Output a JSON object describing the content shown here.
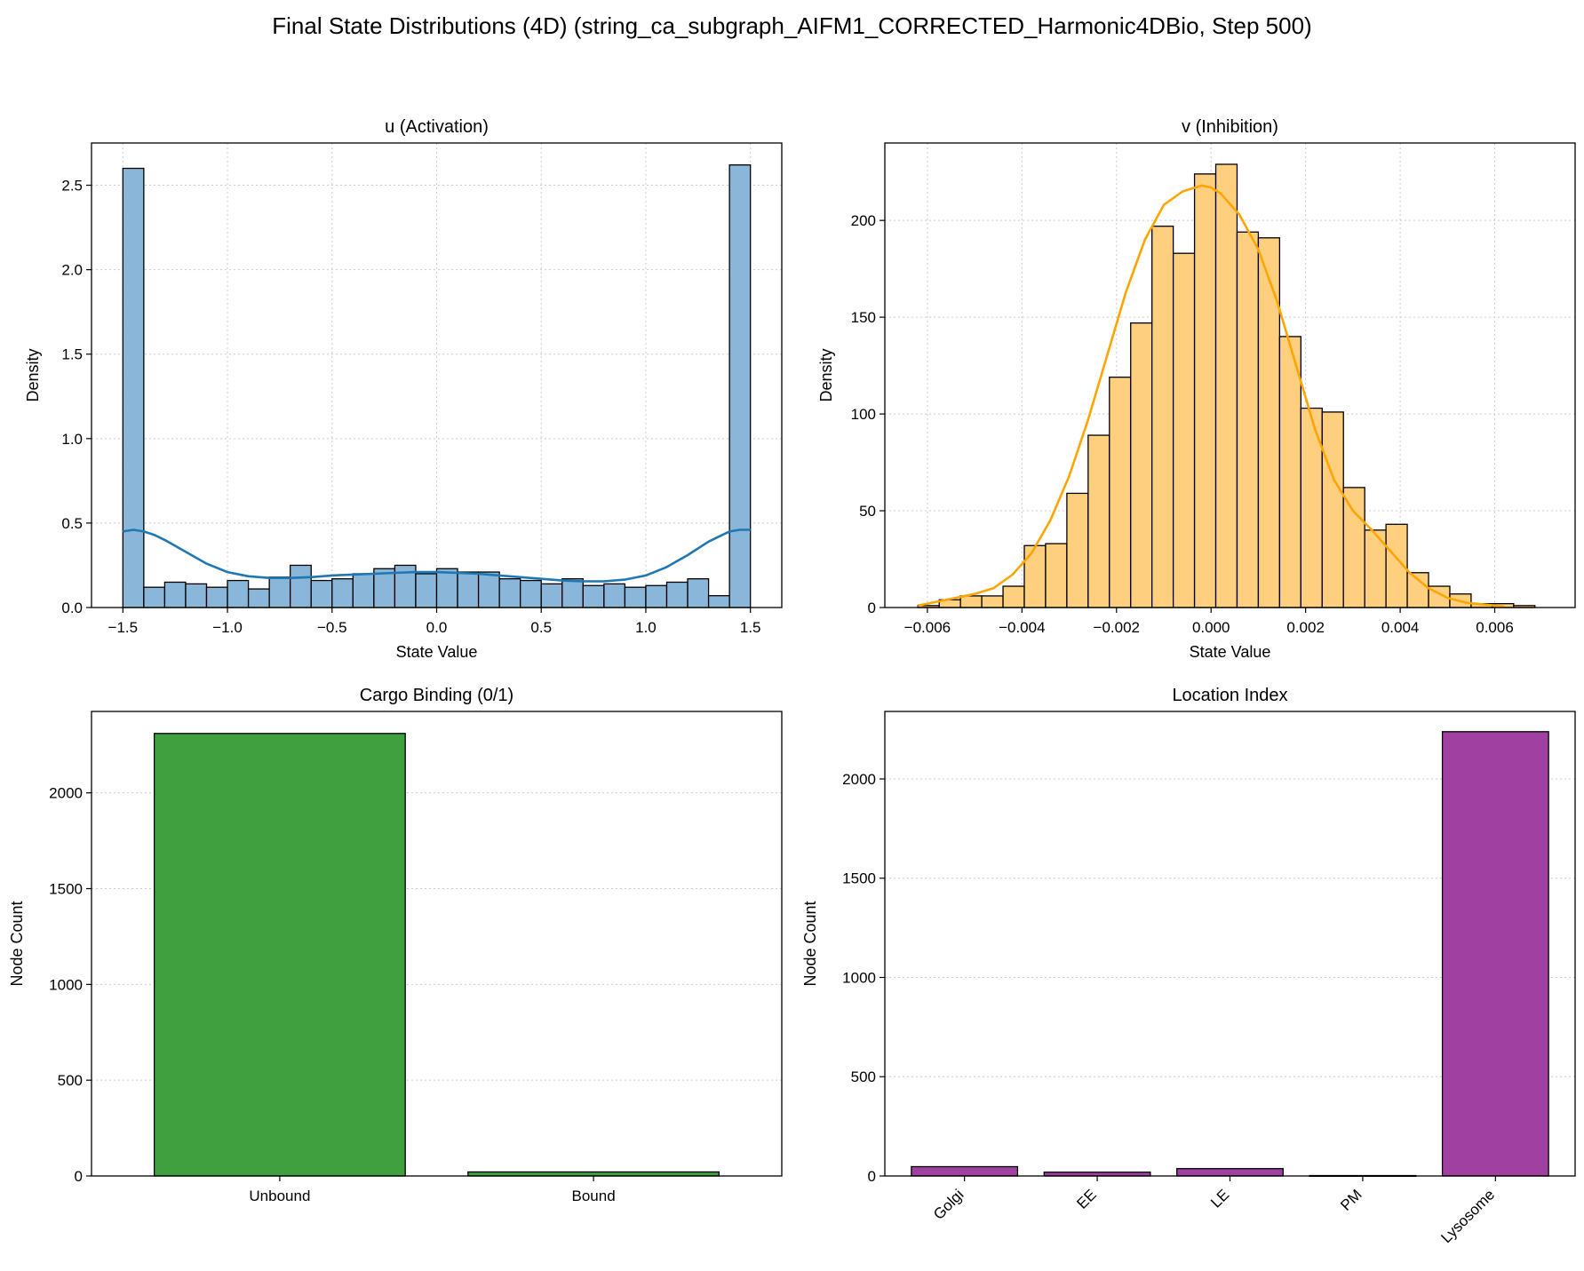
{
  "figure": {
    "suptitle": "Final State Distributions (4D) (string_ca_subgraph_AIFM1_CORRECTED_Harmonic4DBio, Step 500)"
  },
  "chart_data": [
    {
      "type": "histogram",
      "title": "u (Activation)",
      "xlabel": "State Value",
      "ylabel": "Density",
      "xlim": [
        -1.65,
        1.65
      ],
      "ylim": [
        0,
        2.75
      ],
      "xticks": [
        -1.5,
        -1.0,
        -0.5,
        0.0,
        0.5,
        1.0,
        1.5
      ],
      "xtick_labels": [
        "−1.5",
        "−1.0",
        "−0.5",
        "0.0",
        "0.5",
        "1.0",
        "1.5"
      ],
      "yticks": [
        0,
        0.5,
        1.0,
        1.5,
        2.0,
        2.5
      ],
      "ytick_labels": [
        "0.0",
        "0.5",
        "1.0",
        "1.5",
        "2.0",
        "2.5"
      ],
      "grid": true,
      "bin_start": -1.5,
      "bin_width": 0.1,
      "values": [
        2.6,
        0.12,
        0.15,
        0.14,
        0.12,
        0.16,
        0.11,
        0.18,
        0.25,
        0.16,
        0.17,
        0.2,
        0.23,
        0.25,
        0.2,
        0.23,
        0.21,
        0.21,
        0.17,
        0.16,
        0.14,
        0.17,
        0.13,
        0.14,
        0.12,
        0.13,
        0.15,
        0.17,
        0.07,
        2.62
      ],
      "kde": {
        "x": [
          -1.5,
          -1.45,
          -1.4,
          -1.35,
          -1.3,
          -1.2,
          -1.1,
          -1.0,
          -0.9,
          -0.8,
          -0.7,
          -0.6,
          -0.5,
          -0.4,
          -0.3,
          -0.2,
          -0.1,
          0.0,
          0.1,
          0.2,
          0.3,
          0.4,
          0.5,
          0.6,
          0.7,
          0.8,
          0.9,
          1.0,
          1.1,
          1.2,
          1.3,
          1.35,
          1.4,
          1.45,
          1.5
        ],
        "y": [
          0.45,
          0.46,
          0.45,
          0.43,
          0.4,
          0.33,
          0.26,
          0.21,
          0.185,
          0.175,
          0.175,
          0.18,
          0.19,
          0.195,
          0.2,
          0.205,
          0.21,
          0.21,
          0.205,
          0.2,
          0.19,
          0.18,
          0.17,
          0.16,
          0.155,
          0.155,
          0.165,
          0.19,
          0.24,
          0.31,
          0.39,
          0.42,
          0.45,
          0.46,
          0.46
        ]
      },
      "bar_color": "#8ab6d9",
      "line_color": "#1f77b4"
    },
    {
      "type": "histogram",
      "title": "v (Inhibition)",
      "xlabel": "State Value",
      "ylabel": "Density",
      "xlim": [
        -0.0069,
        0.0077
      ],
      "ylim": [
        0,
        240
      ],
      "xticks": [
        -0.006,
        -0.004,
        -0.002,
        0.0,
        0.002,
        0.004,
        0.006
      ],
      "xtick_labels": [
        "−0.006",
        "−0.004",
        "−0.002",
        "0.000",
        "0.002",
        "0.004",
        "0.006"
      ],
      "yticks": [
        0,
        50,
        100,
        150,
        200
      ],
      "ytick_labels": [
        "0",
        "50",
        "100",
        "150",
        "200"
      ],
      "grid": true,
      "bin_start": -0.0062,
      "bin_width": 0.00045,
      "values": [
        1,
        4,
        6,
        6,
        11,
        32,
        33,
        59,
        89,
        119,
        147,
        197,
        183,
        224,
        229,
        194,
        191,
        140,
        103,
        101,
        62,
        40,
        43,
        18,
        11,
        7,
        2,
        2,
        1
      ],
      "kde": {
        "x": [
          -0.0062,
          -0.0058,
          -0.0054,
          -0.005,
          -0.0046,
          -0.0042,
          -0.0038,
          -0.0034,
          -0.003,
          -0.0026,
          -0.0022,
          -0.0018,
          -0.0014,
          -0.001,
          -0.0006,
          -0.0002,
          0.0,
          0.0002,
          0.0006,
          0.001,
          0.0014,
          0.0018,
          0.0022,
          0.0026,
          0.003,
          0.0034,
          0.0038,
          0.0042,
          0.0046,
          0.005,
          0.0054,
          0.0058,
          0.0062
        ],
        "y": [
          1,
          3,
          5,
          7,
          10,
          17,
          28,
          45,
          68,
          97,
          130,
          163,
          190,
          208,
          215,
          218,
          217,
          214,
          203,
          185,
          158,
          125,
          92,
          66,
          50,
          40,
          29,
          18,
          10,
          5,
          2.5,
          1.5,
          0.5
        ]
      },
      "bar_color": "#fecf7e",
      "line_color": "#ffa500"
    },
    {
      "type": "bar",
      "title": "Cargo Binding (0/1)",
      "xlabel": "",
      "ylabel": "Node Count",
      "categories": [
        "Unbound",
        "Bound"
      ],
      "values": [
        2310,
        21
      ],
      "ylim": [
        0,
        2425
      ],
      "yticks": [
        0,
        500,
        1000,
        1500,
        2000
      ],
      "ytick_labels": [
        "0",
        "500",
        "1000",
        "1500",
        "2000"
      ],
      "grid": true,
      "bar_color": "#40a040"
    },
    {
      "type": "bar",
      "title": "Location Index",
      "xlabel": "",
      "ylabel": "Node Count",
      "categories": [
        "Golgi",
        "EE",
        "LE",
        "PM",
        "Lysosome"
      ],
      "values": [
        47,
        19,
        37,
        2,
        2238
      ],
      "ylim": [
        0,
        2340
      ],
      "yticks": [
        0,
        500,
        1000,
        1500,
        2000
      ],
      "ytick_labels": [
        "0",
        "500",
        "1000",
        "1500",
        "2000"
      ],
      "grid": true,
      "bar_color": "#a040a0"
    }
  ]
}
